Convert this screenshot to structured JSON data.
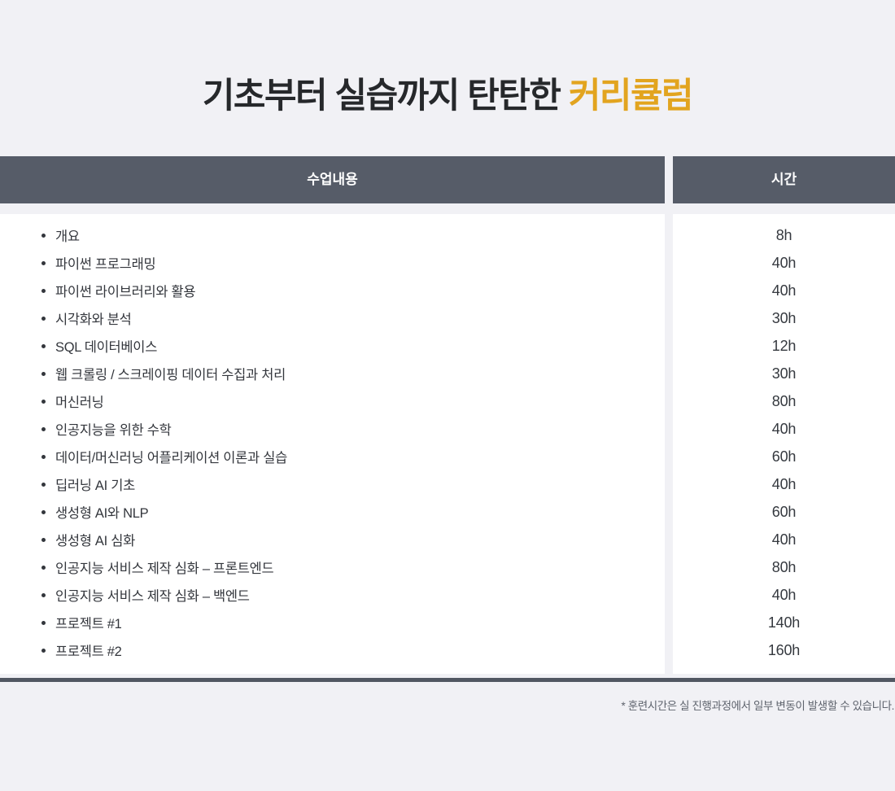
{
  "title": {
    "prefix": "기초부터 실습까지 탄탄한 ",
    "highlight": "커리큘럼"
  },
  "table": {
    "columns": [
      {
        "header": "수업내용"
      },
      {
        "header": "시간"
      }
    ],
    "rows": [
      {
        "topic": "개요",
        "hours": "8h"
      },
      {
        "topic": "파이썬 프로그래밍",
        "hours": "40h"
      },
      {
        "topic": "파이썬 라이브러리와 활용",
        "hours": "40h"
      },
      {
        "topic": "시각화와 분석",
        "hours": "30h"
      },
      {
        "topic": "SQL 데이터베이스",
        "hours": "12h"
      },
      {
        "topic": "웹 크롤링 / 스크레이핑 데이터 수집과 처리",
        "hours": "30h"
      },
      {
        "topic": "머신러닝",
        "hours": "80h"
      },
      {
        "topic": "인공지능을 위한 수학",
        "hours": "40h"
      },
      {
        "topic": "데이터/머신러닝 어플리케이션 이론과 실습",
        "hours": "60h"
      },
      {
        "topic": "딥러닝 AI 기초",
        "hours": "40h"
      },
      {
        "topic": "생성형 AI와 NLP",
        "hours": "60h"
      },
      {
        "topic": "생성형 AI 심화",
        "hours": "40h"
      },
      {
        "topic": "인공지능 서비스 제작 심화 – 프론트엔드",
        "hours": "80h"
      },
      {
        "topic": "인공지능 서비스 제작 심화 – 백엔드",
        "hours": "40h"
      },
      {
        "topic": "프로젝트 #1",
        "hours": "140h"
      },
      {
        "topic": "프로젝트 #2",
        "hours": "160h"
      }
    ]
  },
  "footnote": "* 훈련시간은 실 진행과정에서 일부 변동이 발생할 수 있습니다.",
  "colors": {
    "background": "#f1f1f5",
    "header_bg": "#565c68",
    "panel_bg": "#ffffff",
    "title_text": "#26282b",
    "title_highlight": "#e2a41f",
    "item_text": "#33363c",
    "hours_text": "#35393f",
    "footnote_text": "#5e636d",
    "divider": "#515762"
  }
}
